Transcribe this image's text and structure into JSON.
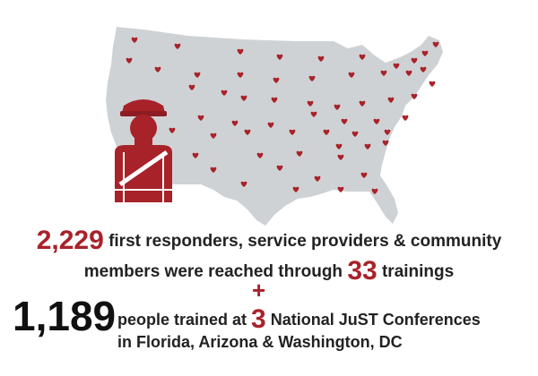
{
  "colors": {
    "accent": "#a8222a",
    "map": "#cfd2d5",
    "text": "#222222"
  },
  "icons": {
    "map": "us-map-icon",
    "marker": "heart-icon",
    "figure": "first-responder-icon"
  },
  "stats": {
    "reached_count": "2,229",
    "reached_text": "first responders, service providers & community",
    "reached_text2": "members were reached through",
    "trainings_count": "33",
    "trainings_label": "trainings",
    "plus": "+",
    "trained_count": "1,189",
    "trained_text": "people trained at",
    "conferences_count": "3",
    "conferences_text": "National JuST Conferences",
    "locations_text": "in Florida, Arizona & Washington, DC"
  }
}
